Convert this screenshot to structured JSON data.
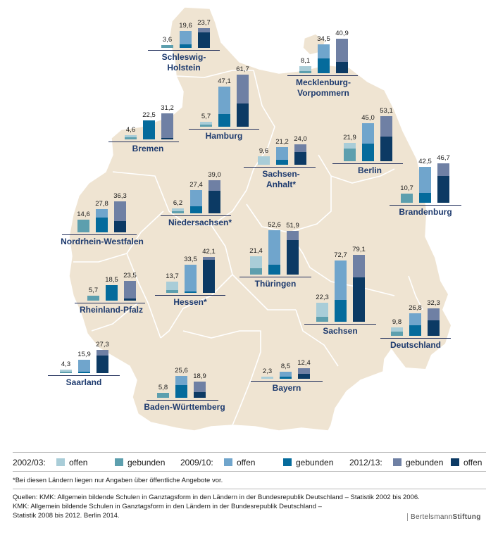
{
  "colors": {
    "offen_2002": "#a9cdd8",
    "gebunden_2002": "#5d9fae",
    "offen_2009": "#70a5cc",
    "gebunden_2009": "#056b9c",
    "gebunden_2012": "#6f80a4",
    "offen_2012": "#0c3a64",
    "map_fill": "#efe4d2",
    "state_label": "#1d3a6e"
  },
  "legend": {
    "p1_label": "2002/03:",
    "p2_label": "2009/10:",
    "p3_label": "2012/13:",
    "offen": "offen",
    "gebunden": "gebunden"
  },
  "notes": {
    "footnote": "*Bei diesen Ländern liegen nur Angaben über öffentliche Angebote vor.",
    "source1": "Quellen: KMK: Allgemein bildende Schulen in Ganztagsform in den Ländern in der Bundesrepublik Deutschland – Statistik 2002 bis 2006.",
    "source2": "KMK: Allgemein bildende Schulen in Ganztagsform in den Ländern in der Bundesrepublik Deutschland –",
    "source3": "Statistik 2008 bis 2012. Berlin 2014."
  },
  "logo": {
    "part1": "Bertelsmann",
    "part2": "Stiftung"
  },
  "chart_data": {
    "type": "bar",
    "stacked": true,
    "unit": "percent",
    "periods": [
      "2002/03",
      "2009/10",
      "2012/13"
    ],
    "series_names": [
      "offen",
      "gebunden"
    ],
    "states": [
      {
        "name": "Schleswig-Holstein",
        "totals": [
          3.6,
          19.6,
          23.7
        ],
        "gebunden": [
          3.6,
          4.2,
          5.6
        ],
        "offen": [
          0.0,
          15.4,
          18.1
        ]
      },
      {
        "name": "Mecklenburg-Vorpommern",
        "totals": [
          8.1,
          34.5,
          40.9
        ],
        "gebunden": [
          2.4,
          17.3,
          27.3
        ],
        "offen": [
          5.7,
          17.2,
          13.6
        ]
      },
      {
        "name": "Hamburg",
        "totals": [
          5.7,
          47.1,
          61.7
        ],
        "gebunden": [
          2.9,
          14.8,
          34.1
        ],
        "offen": [
          2.8,
          32.3,
          27.6
        ]
      },
      {
        "name": "Bremen",
        "totals": [
          4.6,
          22.5,
          31.2
        ],
        "gebunden": [
          2.1,
          22.5,
          29.3
        ],
        "offen": [
          2.5,
          0.0,
          1.9
        ]
      },
      {
        "name": "Berlin",
        "totals": [
          21.9,
          45.0,
          53.1
        ],
        "gebunden": [
          14.8,
          21.0,
          23.9
        ],
        "offen": [
          7.1,
          24.0,
          29.2
        ]
      },
      {
        "name": "Sachsen-\nAnhalt*",
        "totals": [
          9.6,
          21.2,
          24.0
        ],
        "gebunden": [
          0.0,
          5.7,
          9.4
        ],
        "offen": [
          9.6,
          15.5,
          14.6
        ]
      },
      {
        "name": "Niedersachsen*",
        "totals": [
          6.2,
          27.4,
          39.0
        ],
        "gebunden": [
          2.3,
          8.3,
          12.0
        ],
        "offen": [
          3.9,
          19.1,
          27.0
        ]
      },
      {
        "name": "Nordrhein-Westfalen",
        "totals": [
          14.6,
          27.8,
          36.3
        ],
        "gebunden": [
          14.6,
          17.9,
          22.7
        ],
        "offen": [
          0.0,
          9.9,
          13.6
        ]
      },
      {
        "name": "Brandenburg",
        "totals": [
          10.7,
          42.5,
          46.7
        ],
        "gebunden": [
          10.7,
          11.3,
          14.7
        ],
        "offen": [
          0.0,
          31.2,
          32.0
        ]
      },
      {
        "name": "Thüringen",
        "totals": [
          21.4,
          52.6,
          51.9
        ],
        "gebunden": [
          7.5,
          11.4,
          11.1
        ],
        "offen": [
          13.9,
          41.2,
          40.8
        ]
      },
      {
        "name": "Sachsen",
        "totals": [
          22.3,
          72.7,
          79.1
        ],
        "gebunden": [
          6.2,
          25.7,
          26.6
        ],
        "offen": [
          16.1,
          47.0,
          52.5
        ]
      },
      {
        "name": "Hessen*",
        "totals": [
          13.7,
          33.5,
          42.1
        ],
        "gebunden": [
          3.6,
          1.8,
          2.7
        ],
        "offen": [
          10.1,
          31.7,
          39.4
        ]
      },
      {
        "name": "Rheinland-Pfalz",
        "totals": [
          5.7,
          18.5,
          23.5
        ],
        "gebunden": [
          5.7,
          18.5,
          21.0
        ],
        "offen": [
          0.0,
          0.0,
          2.5
        ]
      },
      {
        "name": "Saarland",
        "totals": [
          4.3,
          15.9,
          27.3
        ],
        "gebunden": [
          2.0,
          1.8,
          6.4
        ],
        "offen": [
          2.3,
          14.1,
          20.9
        ]
      },
      {
        "name": "Bayern",
        "totals": [
          2.3,
          8.5,
          12.4
        ],
        "gebunden": [
          0.0,
          2.7,
          6.6
        ],
        "offen": [
          2.3,
          5.8,
          5.8
        ]
      },
      {
        "name": "Baden-Württemberg",
        "totals": [
          5.8,
          25.6,
          18.9
        ],
        "gebunden": [
          5.8,
          14.6,
          12.4
        ],
        "offen": [
          0.0,
          11.0,
          6.5
        ]
      },
      {
        "name": "Deutschland",
        "totals": [
          9.8,
          26.8,
          32.3
        ],
        "gebunden": [
          4.6,
          12.6,
          14.2
        ],
        "offen": [
          5.2,
          14.2,
          18.1
        ]
      }
    ]
  }
}
